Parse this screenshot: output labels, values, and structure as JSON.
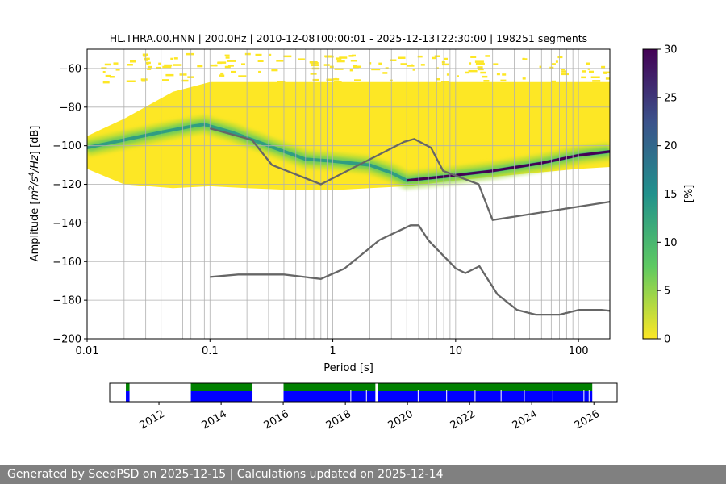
{
  "chart_data": [
    {
      "type": "heatmap",
      "title": "HL.THRA.00.HNN | 200.0Hz | 2010-12-08T00:00:01 - 2025-12-13T22:30:00 | 198251 segments",
      "xlabel": "Period [s]",
      "ylabel_parts": [
        "Amplitude [",
        "m",
        "2",
        "/",
        "s",
        "4",
        "/",
        "Hz",
        "] [dB]"
      ],
      "x_scale": "log",
      "xlim": [
        0.01,
        180
      ],
      "ylim": [
        -200,
        -50
      ],
      "x_ticks": [
        0.01,
        0.1,
        1,
        10,
        100
      ],
      "x_tick_labels": [
        "0.01",
        "0.1",
        "1",
        "10",
        "100"
      ],
      "y_ticks": [
        -200,
        -180,
        -160,
        -140,
        -120,
        -100,
        -80,
        -60
      ],
      "y_tick_labels": [
        "−200",
        "−180",
        "−160",
        "−140",
        "−120",
        "−100",
        "−80",
        "−60"
      ],
      "grid": true,
      "colorbar": {
        "label": "[%]",
        "range": [
          0,
          30
        ],
        "ticks": [
          0,
          5,
          10,
          15,
          20,
          25,
          30
        ],
        "colormap": [
          "#fde725",
          "#5ec962",
          "#21918c",
          "#3b528b",
          "#440154"
        ]
      },
      "density": {
        "envelope": [
          {
            "x": 0.01,
            "low": -112,
            "high": -95
          },
          {
            "x": 0.02,
            "low": -120,
            "high": -86
          },
          {
            "x": 0.05,
            "low": -122,
            "high": -72
          },
          {
            "x": 0.1,
            "low": -121,
            "high": -67
          },
          {
            "x": 0.2,
            "low": -122,
            "high": -67
          },
          {
            "x": 0.5,
            "low": -123,
            "high": -67
          },
          {
            "x": 1,
            "low": -123,
            "high": -67
          },
          {
            "x": 2,
            "low": -122,
            "high": -67
          },
          {
            "x": 4,
            "low": -121,
            "high": -67
          },
          {
            "x": 10,
            "low": -118,
            "high": -67
          },
          {
            "x": 30,
            "low": -115,
            "high": -67
          },
          {
            "x": 100,
            "low": -112,
            "high": -67
          },
          {
            "x": 180,
            "low": -111,
            "high": -67
          }
        ],
        "ridge": [
          {
            "x": 0.01,
            "y": -101
          },
          {
            "x": 0.02,
            "y": -97
          },
          {
            "x": 0.04,
            "y": -93
          },
          {
            "x": 0.07,
            "y": -90
          },
          {
            "x": 0.09,
            "y": -89
          },
          {
            "x": 0.15,
            "y": -93
          },
          {
            "x": 0.3,
            "y": -100
          },
          {
            "x": 0.6,
            "y": -107
          },
          {
            "x": 1,
            "y": -108
          },
          {
            "x": 2,
            "y": -110
          },
          {
            "x": 3,
            "y": -114
          },
          {
            "x": 4,
            "y": -118
          },
          {
            "x": 8,
            "y": -116
          },
          {
            "x": 20,
            "y": -113
          },
          {
            "x": 50,
            "y": -109
          },
          {
            "x": 100,
            "y": -105
          },
          {
            "x": 180,
            "y": -103
          }
        ],
        "sharp_peak_from_x": 3.5,
        "speckle_y": [
          -52,
          -67
        ]
      },
      "series": [
        {
          "color": "#666666",
          "points": [
            {
              "x": 0.1,
              "y": -91
            },
            {
              "x": 0.22,
              "y": -97
            },
            {
              "x": 0.32,
              "y": -110
            },
            {
              "x": 0.8,
              "y": -120
            },
            {
              "x": 3.8,
              "y": -98
            },
            {
              "x": 4.6,
              "y": -96.5
            },
            {
              "x": 6.3,
              "y": -101
            },
            {
              "x": 7.9,
              "y": -113
            },
            {
              "x": 15.4,
              "y": -120
            },
            {
              "x": 20,
              "y": -138.5
            },
            {
              "x": 180,
              "y": -129
            }
          ]
        },
        {
          "color": "#666666",
          "points": [
            {
              "x": 0.1,
              "y": -168
            },
            {
              "x": 0.17,
              "y": -166.7
            },
            {
              "x": 0.4,
              "y": -166.7
            },
            {
              "x": 0.8,
              "y": -169
            },
            {
              "x": 1.24,
              "y": -163.7
            },
            {
              "x": 2.4,
              "y": -148.8
            },
            {
              "x": 4.3,
              "y": -141.2
            },
            {
              "x": 5.0,
              "y": -141.2
            },
            {
              "x": 6.0,
              "y": -149
            },
            {
              "x": 10,
              "y": -163.5
            },
            {
              "x": 12,
              "y": -166
            },
            {
              "x": 15.6,
              "y": -162.4
            },
            {
              "x": 21.9,
              "y": -177
            },
            {
              "x": 31.6,
              "y": -185
            },
            {
              "x": 45,
              "y": -187.5
            },
            {
              "x": 70,
              "y": -187.5
            },
            {
              "x": 101,
              "y": -185
            },
            {
              "x": 154,
              "y": -185
            },
            {
              "x": 180,
              "y": -185.5
            }
          ]
        }
      ]
    },
    {
      "type": "timeline",
      "x_ticks": [
        "2012",
        "2014",
        "2016",
        "2018",
        "2020",
        "2022",
        "2024",
        "2026"
      ],
      "range": [
        "2010-06-01",
        "2026-10-01"
      ],
      "colors": {
        "top": "#008000",
        "bottom": "#0000ff"
      },
      "segments": [
        {
          "start": "2010-12-08",
          "end": "2011-01-20"
        },
        {
          "start": "2013-01-10",
          "end": "2015-01-05"
        },
        {
          "start": "2016-01-05",
          "end": "2018-12-20"
        },
        {
          "start": "2019-01-20",
          "end": "2025-12-13"
        }
      ],
      "gaps": [
        "2018-03-01",
        "2018-09-01",
        "2020-05-01",
        "2021-04-01",
        "2022-03-01",
        "2023-01-01",
        "2023-10-01",
        "2024-09-01",
        "2025-09-01",
        "2025-11-01"
      ]
    }
  ],
  "footer": {
    "text": "Generated by SeedPSD on 2025-12-15 | Calculations updated on 2025-12-14"
  }
}
